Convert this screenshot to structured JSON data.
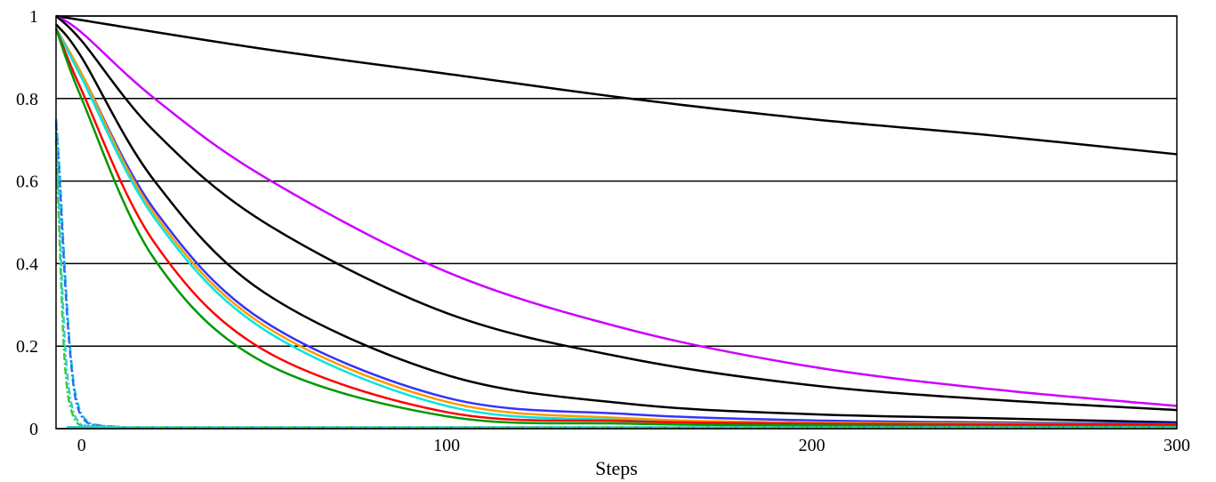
{
  "chart_data": {
    "type": "line",
    "xlabel": "Steps",
    "ylabel": "",
    "xlim": [
      -7,
      300
    ],
    "ylim": [
      0,
      1
    ],
    "x_ticks": [
      0,
      100,
      200,
      300
    ],
    "y_ticks": [
      0,
      0.2,
      0.4,
      0.6,
      0.8,
      1
    ],
    "grid": "horizontal",
    "legend": "none",
    "series": [
      {
        "color": "#000000",
        "style": "solid",
        "x": [
          -7,
          0,
          50,
          100,
          150,
          200,
          250,
          300
        ],
        "y": [
          1,
          0.99,
          0.92,
          0.86,
          0.8,
          0.75,
          0.71,
          0.665
        ]
      },
      {
        "color": "#cc00ff",
        "style": "solid",
        "x": [
          -7,
          0,
          20,
          50,
          100,
          150,
          200,
          250,
          300
        ],
        "y": [
          1,
          0.96,
          0.8,
          0.61,
          0.38,
          0.24,
          0.15,
          0.095,
          0.055
        ]
      },
      {
        "color": "#000000",
        "style": "solid",
        "x": [
          -7,
          0,
          20,
          50,
          100,
          150,
          200,
          250,
          300
        ],
        "y": [
          1,
          0.94,
          0.72,
          0.5,
          0.28,
          0.17,
          0.105,
          0.07,
          0.045
        ]
      },
      {
        "color": "#000000",
        "style": "solid",
        "x": [
          -7,
          0,
          20,
          50,
          100,
          150,
          200,
          250,
          300
        ],
        "y": [
          0.98,
          0.9,
          0.6,
          0.33,
          0.13,
          0.06,
          0.035,
          0.025,
          0.015
        ]
      },
      {
        "color": "#3333ff",
        "style": "solid",
        "x": [
          -7,
          0,
          20,
          50,
          100,
          150,
          200,
          250,
          300
        ],
        "y": [
          0.97,
          0.86,
          0.53,
          0.26,
          0.075,
          0.035,
          0.02,
          0.015,
          0.012
        ]
      },
      {
        "color": "#ff9900",
        "style": "solid",
        "x": [
          -7,
          0,
          20,
          50,
          100,
          150,
          200,
          250,
          300
        ],
        "y": [
          0.97,
          0.86,
          0.52,
          0.25,
          0.065,
          0.025,
          0.015,
          0.012,
          0.01
        ]
      },
      {
        "color": "#00e5e5",
        "style": "solid",
        "x": [
          -7,
          0,
          20,
          50,
          100,
          150,
          200,
          250,
          300
        ],
        "y": [
          0.97,
          0.85,
          0.51,
          0.24,
          0.055,
          0.02,
          0.01,
          0.008,
          0.006
        ]
      },
      {
        "color": "#ff0000",
        "style": "solid",
        "x": [
          -7,
          0,
          20,
          50,
          100,
          150,
          200,
          250,
          300
        ],
        "y": [
          0.97,
          0.82,
          0.45,
          0.19,
          0.04,
          0.018,
          0.012,
          0.01,
          0.01
        ]
      },
      {
        "color": "#009900",
        "style": "solid",
        "x": [
          -7,
          0,
          20,
          50,
          100,
          150,
          200,
          250,
          300
        ],
        "y": [
          0.97,
          0.8,
          0.41,
          0.16,
          0.03,
          0.012,
          0.008,
          0.006,
          0.006
        ]
      },
      {
        "color": "#00cccc",
        "style": "dashdot",
        "x": [
          -7,
          -6,
          -5,
          -4,
          -3,
          -2,
          -1,
          0,
          2,
          5,
          10,
          20,
          300
        ],
        "y": [
          0.75,
          0.62,
          0.45,
          0.3,
          0.18,
          0.1,
          0.06,
          0.035,
          0.015,
          0.008,
          0.005,
          0.003,
          0.003
        ]
      },
      {
        "color": "#3366ff",
        "style": "dashdot",
        "x": [
          -7,
          -6,
          -5,
          -4,
          -3,
          -2,
          -1,
          0,
          2,
          5,
          10,
          20,
          300
        ],
        "y": [
          0.74,
          0.6,
          0.43,
          0.28,
          0.17,
          0.09,
          0.05,
          0.03,
          0.012,
          0.007,
          0.004,
          0.003,
          0.003
        ]
      },
      {
        "color": "#33cc33",
        "style": "dashdot",
        "x": [
          -7,
          -6,
          -5,
          -4,
          -3,
          -2,
          -1,
          0,
          2,
          5,
          10,
          20,
          300
        ],
        "y": [
          0.7,
          0.45,
          0.22,
          0.1,
          0.05,
          0.025,
          0.012,
          0.008,
          0.005,
          0.004,
          0.003,
          0.003,
          0.003
        ]
      },
      {
        "color": "#33cccc",
        "style": "dashdot",
        "x": [
          -7,
          -6,
          -5,
          -4,
          -3,
          -2,
          -1,
          0,
          2,
          5,
          10,
          20,
          300
        ],
        "y": [
          0.72,
          0.5,
          0.28,
          0.14,
          0.07,
          0.035,
          0.018,
          0.01,
          0.006,
          0.005,
          0.004,
          0.003,
          0.003
        ]
      }
    ]
  }
}
